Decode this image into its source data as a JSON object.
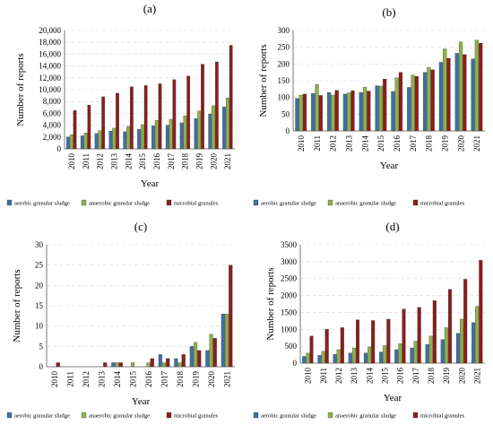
{
  "figure": {
    "panels": [
      {
        "label": "(a)"
      },
      {
        "label": "(b)"
      },
      {
        "label": "(c)"
      },
      {
        "label": "(d)"
      }
    ]
  },
  "colors": {
    "aerobic granular sludge": "#3f6fa4",
    "anaerobic granular sludge": "#8fb04a",
    "microbial granules": "#8b1e1b"
  },
  "chart_data": [
    {
      "type": "bar",
      "title": "(a)",
      "xlabel": "Year",
      "ylabel": "Number of reports",
      "categories": [
        "2010",
        "2011",
        "2012",
        "2013",
        "2014",
        "2015",
        "2016",
        "2017",
        "2018",
        "2019",
        "2020",
        "2021"
      ],
      "series": [
        {
          "name": "aerobic granular sludge",
          "values": [
            2000,
            2200,
            2600,
            3000,
            2900,
            3300,
            3900,
            4000,
            4400,
            5100,
            5900,
            7100
          ]
        },
        {
          "name": "anaerobic granular sludge",
          "values": [
            2400,
            2700,
            3100,
            3500,
            3800,
            4100,
            4800,
            5000,
            5600,
            6400,
            7300,
            8600
          ]
        },
        {
          "name": "microbial granules",
          "values": [
            6500,
            7400,
            8800,
            9400,
            10500,
            10700,
            11000,
            11700,
            12300,
            14300,
            14700,
            17500
          ]
        }
      ],
      "ylim": [
        0,
        20000
      ],
      "yticks": [
        0,
        2000,
        4000,
        6000,
        8000,
        10000,
        12000,
        14000,
        16000,
        18000,
        20000
      ],
      "ytick_labels": [
        "0",
        "2,000",
        "4,000",
        "6,000",
        "8,000",
        "10,000",
        "12,000",
        "14,000",
        "16,000",
        "18,000",
        "20,000"
      ],
      "grid": true,
      "legend": "bottom"
    },
    {
      "type": "bar",
      "title": "(b)",
      "xlabel": "Year",
      "ylabel": "Number of reports",
      "categories": [
        "2010",
        "2011",
        "2012",
        "2013",
        "2014",
        "2015",
        "2016",
        "2017",
        "2018",
        "2019",
        "2020",
        "2021"
      ],
      "series": [
        {
          "name": "aerobic granular sludge",
          "values": [
            97,
            112,
            115,
            110,
            115,
            135,
            118,
            130,
            175,
            205,
            232,
            215
          ]
        },
        {
          "name": "anaerobic granular sludge",
          "values": [
            107,
            139,
            107,
            114,
            131,
            134,
            159,
            167,
            190,
            245,
            266,
            271
          ]
        },
        {
          "name": "microbial granules",
          "values": [
            110,
            106,
            121,
            120,
            119,
            155,
            175,
            163,
            183,
            217,
            228,
            262
          ]
        }
      ],
      "ylim": [
        0,
        300
      ],
      "yticks": [
        0,
        50,
        100,
        150,
        200,
        250,
        300
      ],
      "ytick_labels": [
        "0",
        "50",
        "100",
        "150",
        "200",
        "250",
        "300"
      ],
      "grid": true,
      "legend": "bottom"
    },
    {
      "type": "bar",
      "title": "(c)",
      "xlabel": "Year",
      "ylabel": "Number of reports",
      "categories": [
        "2010",
        "2011",
        "2012",
        "2013",
        "2014",
        "2015",
        "2016",
        "2017",
        "2018",
        "2019",
        "2020",
        "2021"
      ],
      "series": [
        {
          "name": "aerobic granular sludge",
          "values": [
            0,
            0,
            0,
            0,
            1,
            0,
            0,
            3,
            2,
            5,
            4,
            13
          ]
        },
        {
          "name": "anaerobic granular sludge",
          "values": [
            0,
            0,
            0,
            0,
            1,
            1,
            1,
            1,
            1,
            6,
            8,
            13
          ]
        },
        {
          "name": "microbial granules",
          "values": [
            1,
            0,
            0,
            1,
            1,
            0,
            2,
            2,
            3,
            4,
            7,
            25
          ]
        }
      ],
      "ylim": [
        0,
        30
      ],
      "yticks": [
        0,
        5,
        10,
        15,
        20,
        25,
        30
      ],
      "ytick_labels": [
        "0",
        "5",
        "10",
        "15",
        "20",
        "25",
        "30"
      ],
      "grid": true,
      "legend": "bottom"
    },
    {
      "type": "bar",
      "title": "(d)",
      "xlabel": "Year",
      "ylabel": "Number of reports",
      "categories": [
        "2010",
        "2011",
        "2012",
        "2013",
        "2014",
        "2015",
        "2016",
        "2017",
        "2018",
        "2019",
        "2020",
        "2021"
      ],
      "series": [
        {
          "name": "aerobic granular sludge",
          "values": [
            200,
            230,
            260,
            300,
            300,
            330,
            400,
            450,
            550,
            700,
            880,
            1200
          ]
        },
        {
          "name": "anaerobic granular sludge",
          "values": [
            300,
            350,
            400,
            450,
            480,
            520,
            580,
            650,
            800,
            1050,
            1300,
            1680
          ]
        },
        {
          "name": "microbial granules",
          "values": [
            800,
            1000,
            1050,
            1280,
            1260,
            1300,
            1600,
            1650,
            1850,
            2180,
            2480,
            3040
          ]
        }
      ],
      "ylim": [
        0,
        3500
      ],
      "yticks": [
        0,
        500,
        1000,
        1500,
        2000,
        2500,
        3000,
        3500
      ],
      "ytick_labels": [
        "0",
        "500",
        "1000",
        "1500",
        "2000",
        "2500",
        "3000",
        "3500"
      ],
      "grid": true,
      "legend": "bottom"
    }
  ]
}
